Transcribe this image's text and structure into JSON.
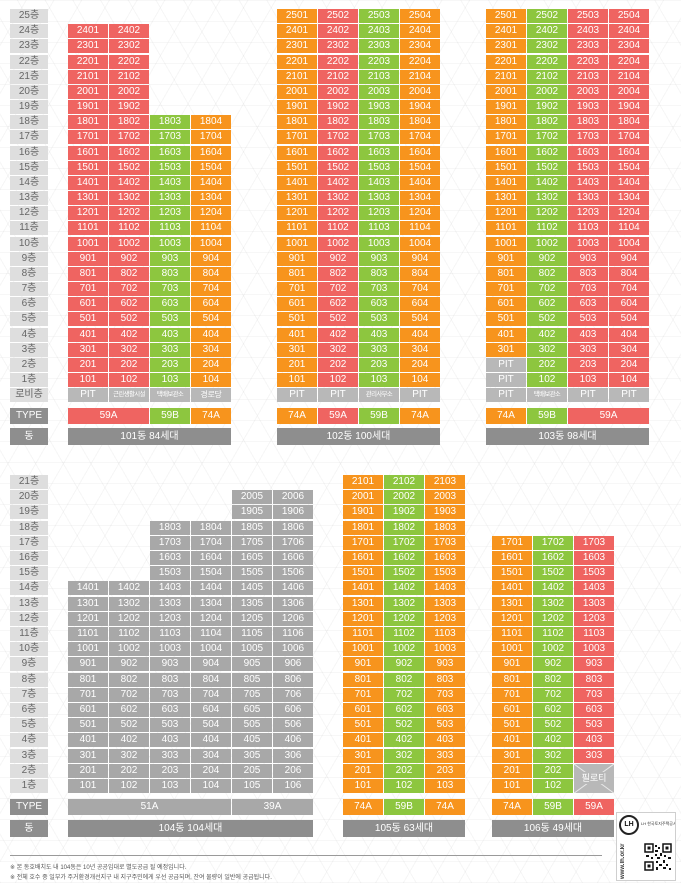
{
  "colors": {
    "red": "#ef6461",
    "green": "#8dc63f",
    "orange": "#f7941d",
    "gray": "#a8a8a8",
    "pit": "#b8b8b8",
    "label_bg": "#dedede",
    "label_text": "#666666",
    "bar": "#8e8e8e"
  },
  "labels": {
    "type": "TYPE",
    "dong": "동"
  },
  "sections": {
    "top": {
      "floor_labels": [
        "25층",
        "24층",
        "23층",
        "22층",
        "21층",
        "20층",
        "19층",
        "18층",
        "17층",
        "16층",
        "15층",
        "14층",
        "13층",
        "12층",
        "11층",
        "10층",
        "9층",
        "8층",
        "7층",
        "6층",
        "5층",
        "4층",
        "3층",
        "2층",
        "1층"
      ],
      "lobby_label": "로비층",
      "buildings": [
        {
          "dong_label": "101동 84세대",
          "columns": [
            {
              "color": "red",
              "lobby": "PIT",
              "units": [
                "2401",
                "2301",
                "2201",
                "2101",
                "2001",
                "1901",
                "1801",
                "1701",
                "1601",
                "1501",
                "1401",
                "1301",
                "1201",
                "1101",
                "1001",
                "901",
                "801",
                "701",
                "601",
                "501",
                "401",
                "301",
                "201",
                "101"
              ]
            },
            {
              "color": "red",
              "lobby": "근린생활시설",
              "units": [
                "2402",
                "2302",
                "2202",
                "2102",
                "2002",
                "1902",
                "1802",
                "1702",
                "1602",
                "1502",
                "1402",
                "1302",
                "1202",
                "1102",
                "1002",
                "902",
                "802",
                "702",
                "602",
                "502",
                "402",
                "302",
                "202",
                "102"
              ]
            },
            {
              "color": "green",
              "lobby": "택배보관소",
              "units": [
                "1803",
                "1703",
                "1603",
                "1503",
                "1403",
                "1303",
                "1203",
                "1103",
                "1003",
                "903",
                "803",
                "703",
                "603",
                "503",
                "403",
                "303",
                "203",
                "103"
              ]
            },
            {
              "color": "orange",
              "lobby": "경로당",
              "units": [
                "1804",
                "1704",
                "1604",
                "1504",
                "1404",
                "1304",
                "1204",
                "1104",
                "1004",
                "904",
                "804",
                "704",
                "604",
                "504",
                "404",
                "304",
                "204",
                "104"
              ]
            }
          ],
          "types": [
            {
              "label": "59A",
              "color": "red",
              "span": 2
            },
            {
              "label": "59B",
              "color": "green",
              "span": 1
            },
            {
              "label": "74A",
              "color": "orange",
              "span": 1
            }
          ]
        },
        {
          "dong_label": "102동 100세대",
          "columns": [
            {
              "color": "orange",
              "lobby": "PIT",
              "units": [
                "2501",
                "2401",
                "2301",
                "2201",
                "2101",
                "2001",
                "1901",
                "1801",
                "1701",
                "1601",
                "1501",
                "1401",
                "1301",
                "1201",
                "1101",
                "1001",
                "901",
                "801",
                "701",
                "601",
                "501",
                "401",
                "301",
                "201",
                "101"
              ]
            },
            {
              "color": "red",
              "lobby": "PIT",
              "units": [
                "2502",
                "2402",
                "2302",
                "2202",
                "2102",
                "2002",
                "1902",
                "1802",
                "1702",
                "1602",
                "1502",
                "1402",
                "1302",
                "1202",
                "1102",
                "1002",
                "902",
                "802",
                "702",
                "602",
                "502",
                "402",
                "302",
                "202",
                "102"
              ]
            },
            {
              "color": "green",
              "lobby": "관리사무소",
              "units": [
                "2503",
                "2403",
                "2303",
                "2203",
                "2103",
                "2003",
                "1903",
                "1803",
                "1703",
                "1603",
                "1503",
                "1403",
                "1303",
                "1203",
                "1103",
                "1003",
                "903",
                "803",
                "703",
                "603",
                "503",
                "403",
                "303",
                "203",
                "103"
              ]
            },
            {
              "color": "orange",
              "lobby": "PIT",
              "units": [
                "2504",
                "2404",
                "2304",
                "2204",
                "2104",
                "2004",
                "1904",
                "1804",
                "1704",
                "1604",
                "1504",
                "1404",
                "1304",
                "1204",
                "1104",
                "1004",
                "904",
                "804",
                "704",
                "604",
                "504",
                "404",
                "304",
                "204",
                "104"
              ]
            }
          ],
          "types": [
            {
              "label": "74A",
              "color": "orange",
              "span": 1
            },
            {
              "label": "59A",
              "color": "red",
              "span": 1
            },
            {
              "label": "59B",
              "color": "green",
              "span": 1
            },
            {
              "label": "74A",
              "color": "orange",
              "span": 1
            }
          ]
        },
        {
          "dong_label": "103동 98세대",
          "columns": [
            {
              "color": "orange",
              "lobby": "PIT",
              "units": [
                "2501",
                "2401",
                "2301",
                "2201",
                "2101",
                "2001",
                "1901",
                "1801",
                "1701",
                "1601",
                "1501",
                "1401",
                "1301",
                "1201",
                "1101",
                "1001",
                "901",
                "801",
                "701",
                "601",
                "501",
                "401",
                "301",
                "PIT",
                "PIT"
              ]
            },
            {
              "color": "green",
              "lobby": "택배보관소",
              "units": [
                "2502",
                "2402",
                "2302",
                "2202",
                "2102",
                "2002",
                "1902",
                "1802",
                "1702",
                "1602",
                "1502",
                "1402",
                "1302",
                "1202",
                "1102",
                "1002",
                "902",
                "802",
                "702",
                "602",
                "502",
                "402",
                "302",
                "202",
                "102"
              ]
            },
            {
              "color": "red",
              "lobby": "PIT",
              "units": [
                "2503",
                "2403",
                "2303",
                "2203",
                "2103",
                "2003",
                "1903",
                "1803",
                "1703",
                "1603",
                "1503",
                "1403",
                "1303",
                "1203",
                "1103",
                "1003",
                "903",
                "803",
                "703",
                "603",
                "503",
                "403",
                "303",
                "203",
                "103"
              ]
            },
            {
              "color": "red",
              "lobby": "PIT",
              "units": [
                "2504",
                "2404",
                "2304",
                "2204",
                "2104",
                "2004",
                "1904",
                "1804",
                "1704",
                "1604",
                "1504",
                "1404",
                "1304",
                "1204",
                "1104",
                "1004",
                "904",
                "804",
                "704",
                "604",
                "504",
                "404",
                "304",
                "204",
                "104"
              ]
            }
          ],
          "types": [
            {
              "label": "74A",
              "color": "orange",
              "span": 1
            },
            {
              "label": "59B",
              "color": "green",
              "span": 1
            },
            {
              "label": "59A",
              "color": "red",
              "span": 2
            }
          ]
        }
      ]
    },
    "bottom": {
      "floor_labels": [
        "21층",
        "20층",
        "19층",
        "18층",
        "17층",
        "16층",
        "15층",
        "14층",
        "13층",
        "12층",
        "11층",
        "10층",
        "9층",
        "8층",
        "7층",
        "6층",
        "5층",
        "4층",
        "3층",
        "2층",
        "1층"
      ],
      "buildings": [
        {
          "dong_label": "104동 104세대",
          "columns": [
            {
              "color": "gray",
              "units": [
                "1401",
                "1301",
                "1201",
                "1101",
                "1001",
                "901",
                "801",
                "701",
                "601",
                "501",
                "401",
                "301",
                "201",
                "101"
              ]
            },
            {
              "color": "gray",
              "units": [
                "1402",
                "1302",
                "1202",
                "1102",
                "1002",
                "902",
                "802",
                "702",
                "602",
                "502",
                "402",
                "302",
                "202",
                "102"
              ]
            },
            {
              "color": "gray",
              "units": [
                "1803",
                "1703",
                "1603",
                "1503",
                "1403",
                "1303",
                "1203",
                "1103",
                "1003",
                "903",
                "803",
                "703",
                "603",
                "503",
                "403",
                "303",
                "203",
                "103"
              ]
            },
            {
              "color": "gray",
              "units": [
                "1804",
                "1704",
                "1604",
                "1504",
                "1404",
                "1304",
                "1204",
                "1104",
                "1004",
                "904",
                "804",
                "704",
                "604",
                "504",
                "404",
                "304",
                "204",
                "104"
              ]
            },
            {
              "color": "gray",
              "units": [
                "2005",
                "1905",
                "1805",
                "1705",
                "1605",
                "1505",
                "1405",
                "1305",
                "1205",
                "1105",
                "1005",
                "905",
                "805",
                "705",
                "605",
                "505",
                "405",
                "305",
                "205",
                "105"
              ]
            },
            {
              "color": "gray",
              "units": [
                "2006",
                "1906",
                "1806",
                "1706",
                "1606",
                "1506",
                "1406",
                "1306",
                "1206",
                "1106",
                "1006",
                "906",
                "806",
                "706",
                "606",
                "506",
                "406",
                "306",
                "206",
                "106"
              ]
            }
          ],
          "types": [
            {
              "label": "51A",
              "color": "gray",
              "span": 4
            },
            {
              "label": "39A",
              "color": "gray",
              "span": 2
            }
          ]
        },
        {
          "dong_label": "105동 63세대",
          "columns": [
            {
              "color": "orange",
              "units": [
                "2101",
                "2001",
                "1901",
                "1801",
                "1701",
                "1601",
                "1501",
                "1401",
                "1301",
                "1201",
                "1101",
                "1001",
                "901",
                "801",
                "701",
                "601",
                "501",
                "401",
                "301",
                "201",
                "101"
              ]
            },
            {
              "color": "green",
              "units": [
                "2102",
                "2002",
                "1902",
                "1802",
                "1702",
                "1602",
                "1502",
                "1402",
                "1302",
                "1202",
                "1102",
                "1002",
                "902",
                "802",
                "702",
                "602",
                "502",
                "402",
                "302",
                "202",
                "102"
              ]
            },
            {
              "color": "orange",
              "units": [
                "2103",
                "2003",
                "1903",
                "1803",
                "1703",
                "1603",
                "1503",
                "1403",
                "1303",
                "1203",
                "1103",
                "1003",
                "903",
                "803",
                "703",
                "603",
                "503",
                "403",
                "303",
                "203",
                "103"
              ]
            }
          ],
          "types": [
            {
              "label": "74A",
              "color": "orange",
              "span": 1
            },
            {
              "label": "59B",
              "color": "green",
              "span": 1
            },
            {
              "label": "74A",
              "color": "orange",
              "span": 1
            }
          ]
        },
        {
          "dong_label": "106동 49세대",
          "columns": [
            {
              "color": "orange",
              "units": [
                "1701",
                "1601",
                "1501",
                "1401",
                "1301",
                "1201",
                "1101",
                "1001",
                "901",
                "801",
                "701",
                "601",
                "501",
                "401",
                "301",
                "201",
                "101"
              ]
            },
            {
              "color": "green",
              "units": [
                "1702",
                "1602",
                "1502",
                "1402",
                "1302",
                "1202",
                "1102",
                "1002",
                "902",
                "802",
                "702",
                "602",
                "502",
                "402",
                "302",
                "202",
                "102"
              ]
            },
            {
              "color": "red",
              "units": [
                "1703",
                "1603",
                "1503",
                "1403",
                "1303",
                "1203",
                "1103",
                "1003",
                "903",
                "803",
                "703",
                "603",
                "503",
                "403",
                "303"
              ],
              "base": {
                "label": "필로티",
                "floors": 2
              }
            }
          ],
          "types": [
            {
              "label": "74A",
              "color": "orange",
              "span": 1
            },
            {
              "label": "59B",
              "color": "green",
              "span": 1
            },
            {
              "label": "59A",
              "color": "red",
              "span": 1
            }
          ]
        }
      ]
    }
  },
  "footnotes": [
    "※ 본 동호배치도 내 104동은 10년 공공임대로 별도공급 될 예정입니다.",
    "※ 전체 호수 중 일부가 주거환경개선지구 내 지구주민에게 우선 공급되며, 잔여 물량이 일반에 공급됩니다."
  ],
  "logo": {
    "mark": "LH",
    "org": "LH 한국토지주택공사",
    "url": "www.lh.or.kr"
  }
}
